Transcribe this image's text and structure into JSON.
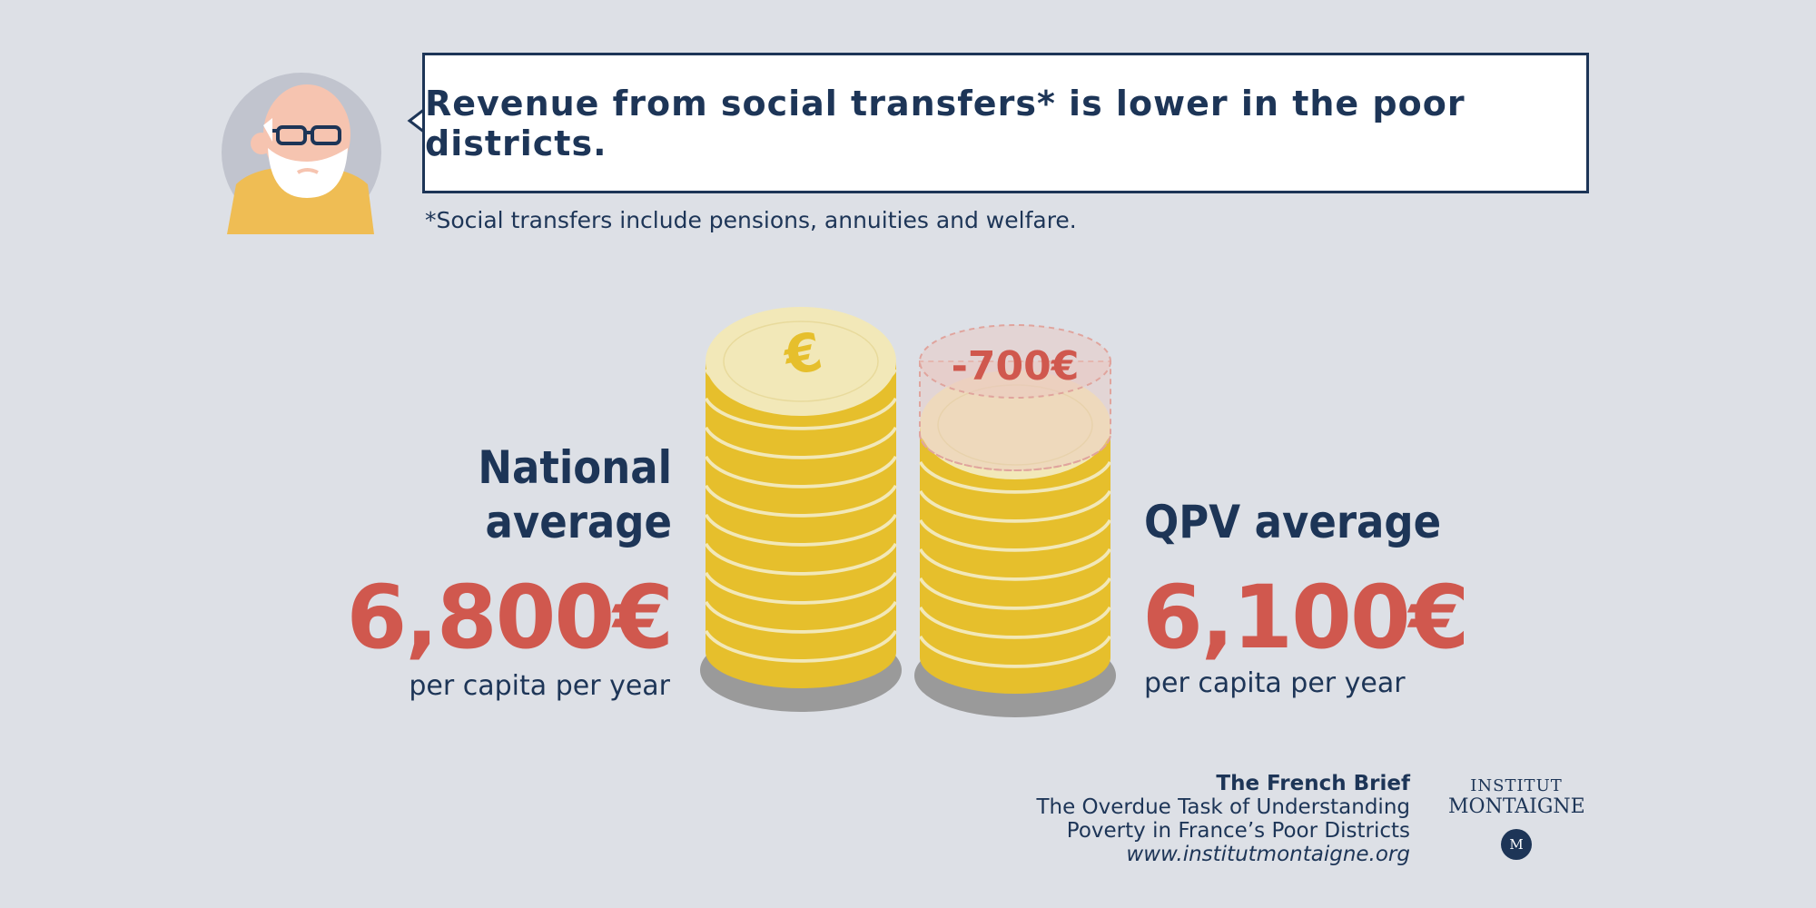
{
  "headline": "Revenue from social transfers* is lower in the poor districts.",
  "footnote": "*Social transfers include pensions, annuities and welfare.",
  "national": {
    "label_line1": "National",
    "label_line2": "average",
    "amount": "6,800€",
    "unit": "per capita per year"
  },
  "qpv": {
    "label": "QPV average",
    "amount": "6,100€",
    "unit": "per capita per year"
  },
  "difference": "-700€",
  "coin_symbol": "€",
  "footer": {
    "title": "The French Brief",
    "line1": "The Overdue Task of Understanding",
    "line2": "Poverty in France’s Poor Districts",
    "url": "www.institutmontaigne.org"
  },
  "logo": {
    "line1": "INSTITUT",
    "line2": "MONTAIGNE",
    "mark": "M"
  },
  "colors": {
    "background": "#dde0e6",
    "navy": "#1d3557",
    "red": "#d0584e",
    "coin_gold": "#e6bf2c",
    "coin_cream": "#f2e8b8",
    "avatar_shirt": "#efbd54"
  },
  "icons": [
    "elderly-man-avatar-icon",
    "euro-coin-icon",
    "institut-montaigne-logo"
  ]
}
